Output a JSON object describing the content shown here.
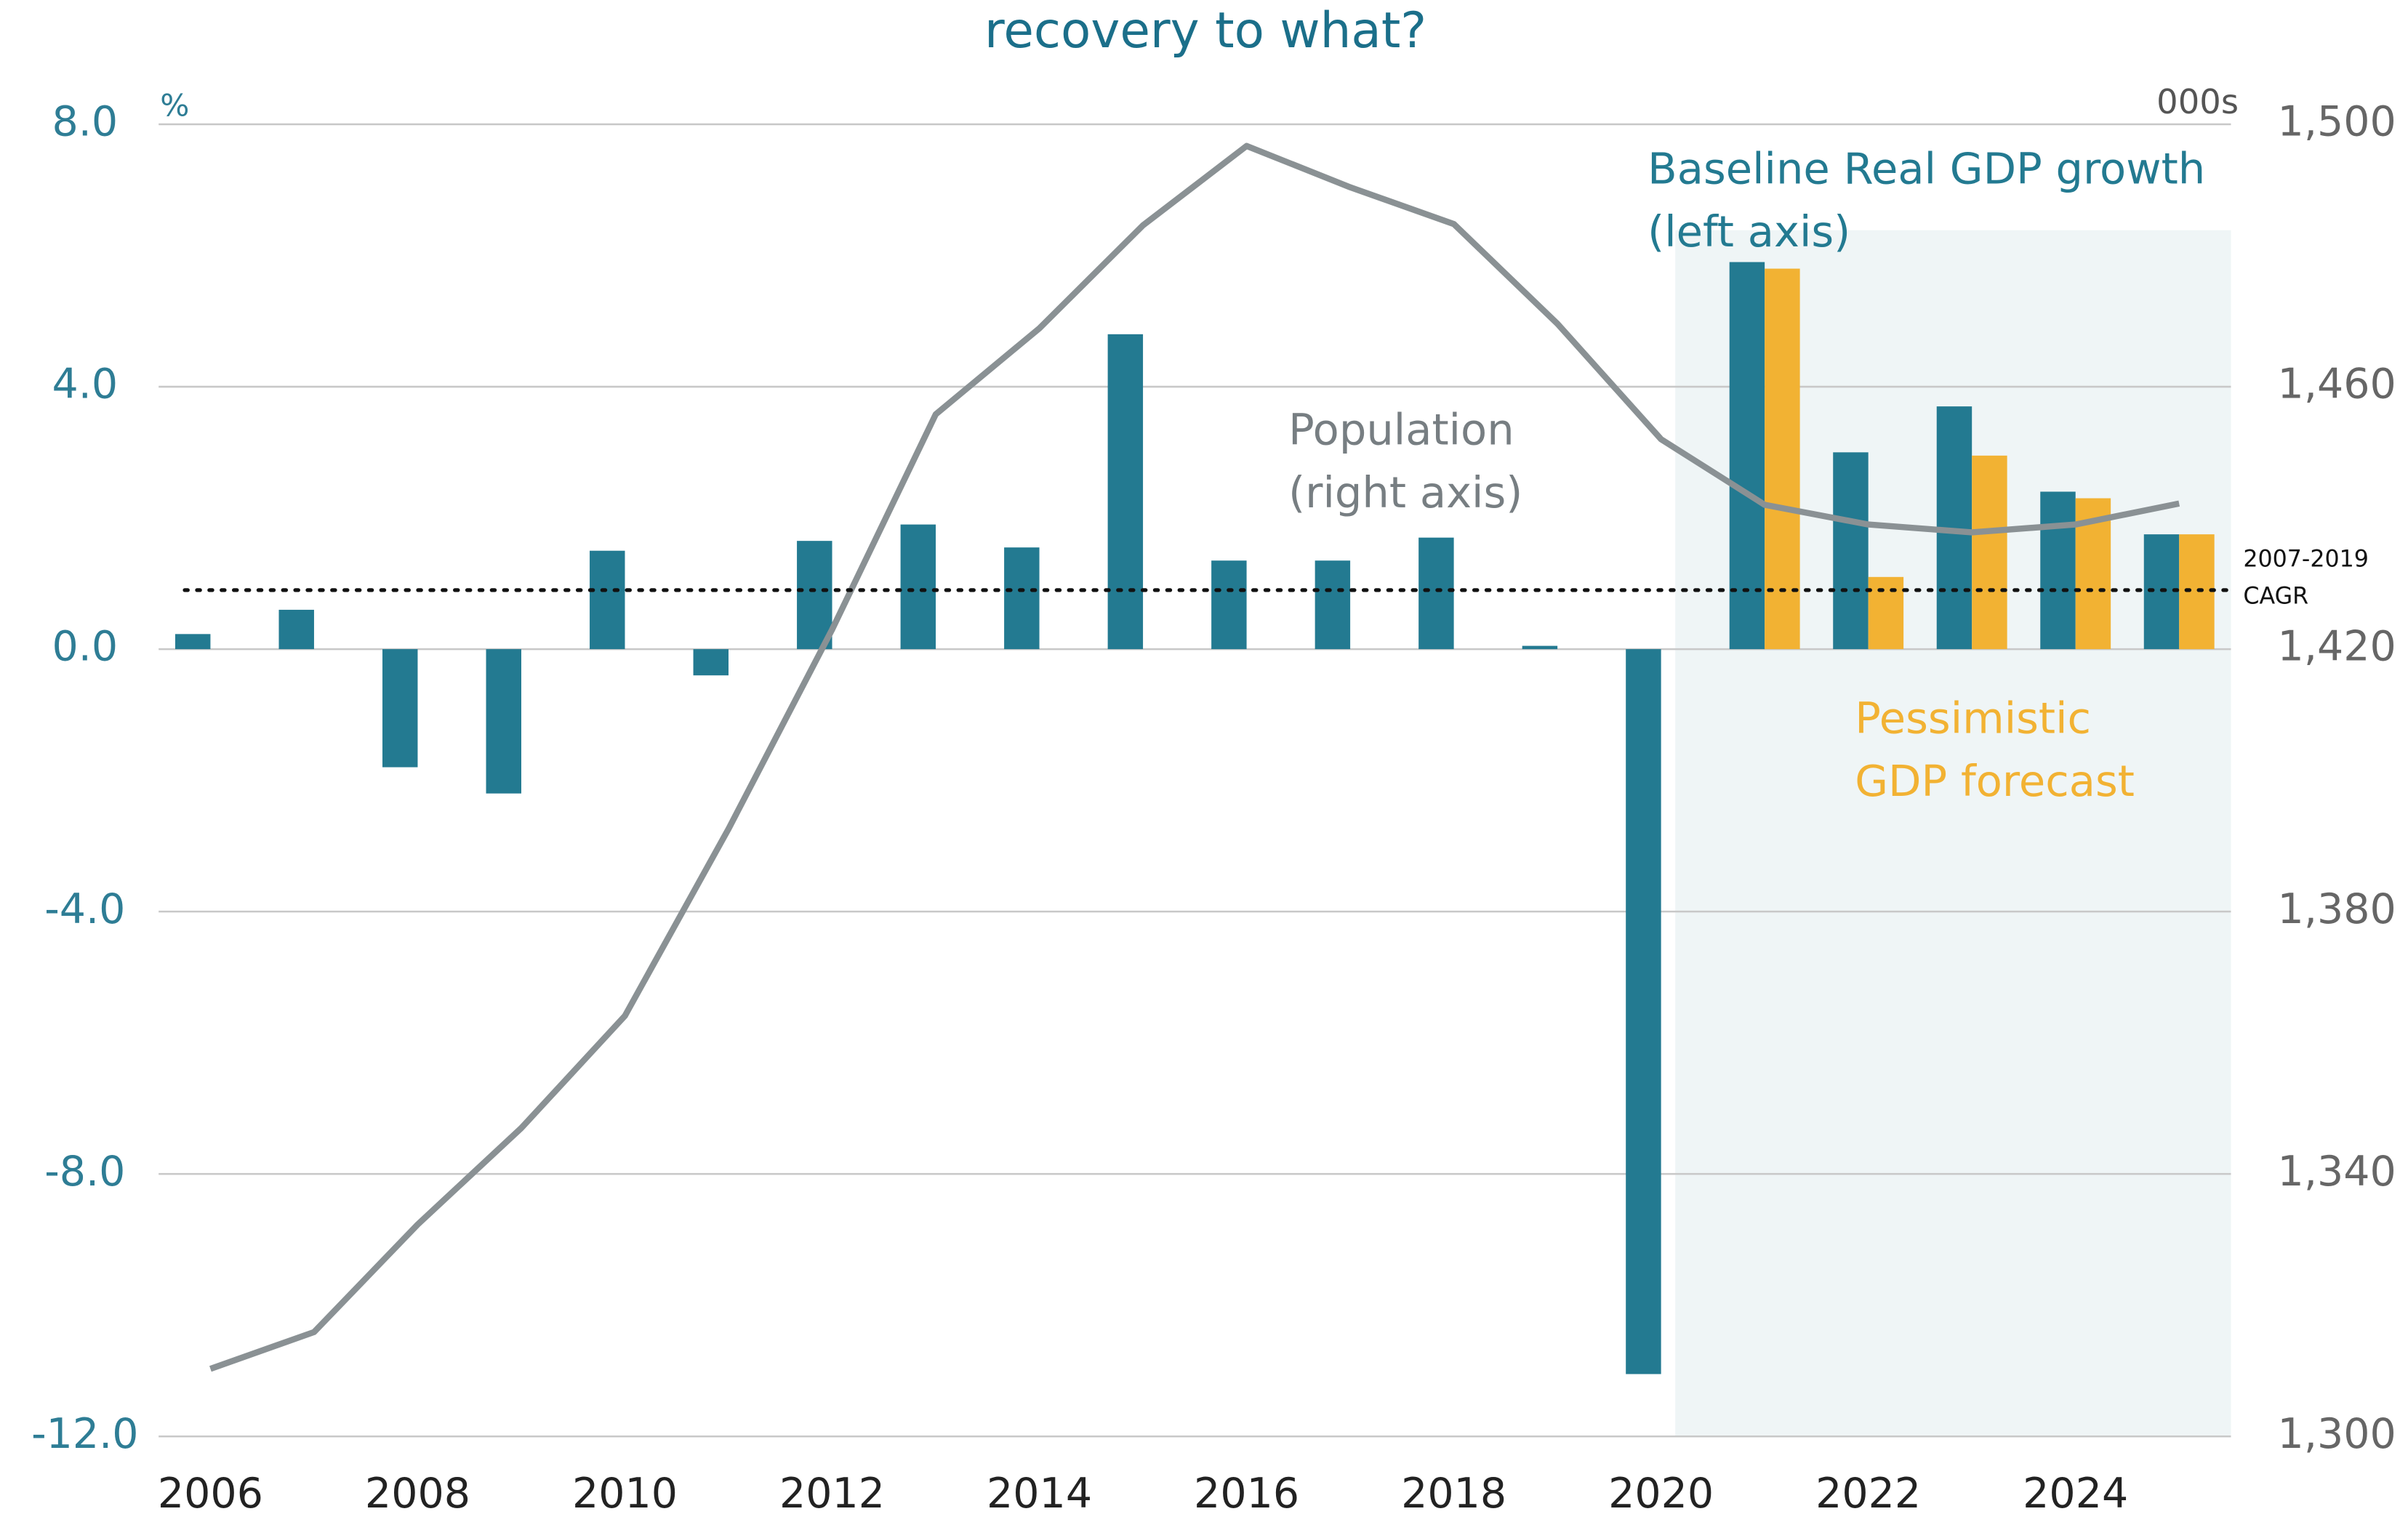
{
  "chart_data": {
    "type": "bar-line",
    "title": "recovery to what?",
    "y_unit": "%",
    "y2_unit": "000s",
    "x": [
      2006,
      2007,
      2008,
      2009,
      2010,
      2011,
      2012,
      2013,
      2014,
      2015,
      2016,
      2017,
      2018,
      2019,
      2020,
      2021,
      2022,
      2023,
      2024,
      2025
    ],
    "xlim": [
      2005.5,
      2025.5
    ],
    "xticks": [
      2006,
      2008,
      2010,
      2012,
      2014,
      2016,
      2018,
      2020,
      2022,
      2024
    ],
    "ylim": [
      -12,
      8
    ],
    "yticks": [
      {
        "value": -12,
        "label": "-12.0"
      },
      {
        "value": -8,
        "label": "-8.0"
      },
      {
        "value": -4,
        "label": "-4.0"
      },
      {
        "value": 0,
        "label": "0.0"
      },
      {
        "value": 4,
        "label": "4.0"
      },
      {
        "value": 8,
        "label": "8.0"
      }
    ],
    "y2lim": [
      1300,
      1500
    ],
    "y2ticks": [
      {
        "value": 1300,
        "label": "1,300"
      },
      {
        "value": 1340,
        "label": "1,340"
      },
      {
        "value": 1380,
        "label": "1,380"
      },
      {
        "value": 1420,
        "label": "1,420"
      },
      {
        "value": 1460,
        "label": "1,460"
      },
      {
        "value": 1500,
        "label": "1,500"
      }
    ],
    "grid": true,
    "series": [
      {
        "kind": "bar",
        "color": "#237a91",
        "values": [
          0.23,
          0.6,
          -1.8,
          -2.2,
          1.5,
          -0.4,
          1.65,
          1.9,
          1.55,
          4.8,
          1.35,
          1.35,
          1.7,
          0.05,
          -11.05,
          5.9,
          3.0,
          3.7,
          2.4,
          1.75
        ]
      },
      {
        "kind": "bar",
        "color": "#f2b233",
        "values": [
          null,
          null,
          null,
          null,
          null,
          null,
          null,
          null,
          null,
          null,
          null,
          null,
          null,
          null,
          null,
          5.8,
          1.1,
          2.95,
          2.3,
          1.75
        ]
      },
      {
        "kind": "line",
        "axis": "y2",
        "color": "#8a9194",
        "values": [
          1310.3,
          1315.9,
          1332.3,
          1347.0,
          1364.1,
          1392.6,
          1423.0,
          1455.8,
          1468.9,
          1484.6,
          1496.7,
          1490.4,
          1484.8,
          1469.6,
          1452.0,
          1442.0,
          1439.0,
          1437.8,
          1439.0,
          1442.2
        ]
      }
    ],
    "reference_line": {
      "value": 0.9,
      "label_lines": [
        "2007-2019",
        "CAGR"
      ]
    },
    "annotations": [
      {
        "lines": [
          "Baseline Real GDP growth",
          "(left axis)"
        ],
        "color": "#237a91"
      },
      {
        "lines": [
          "Population",
          "(right axis)"
        ],
        "color": "#777e82"
      },
      {
        "lines": [
          "Pessimistic",
          "GDP forecast"
        ],
        "color": "#f2b233"
      }
    ]
  }
}
